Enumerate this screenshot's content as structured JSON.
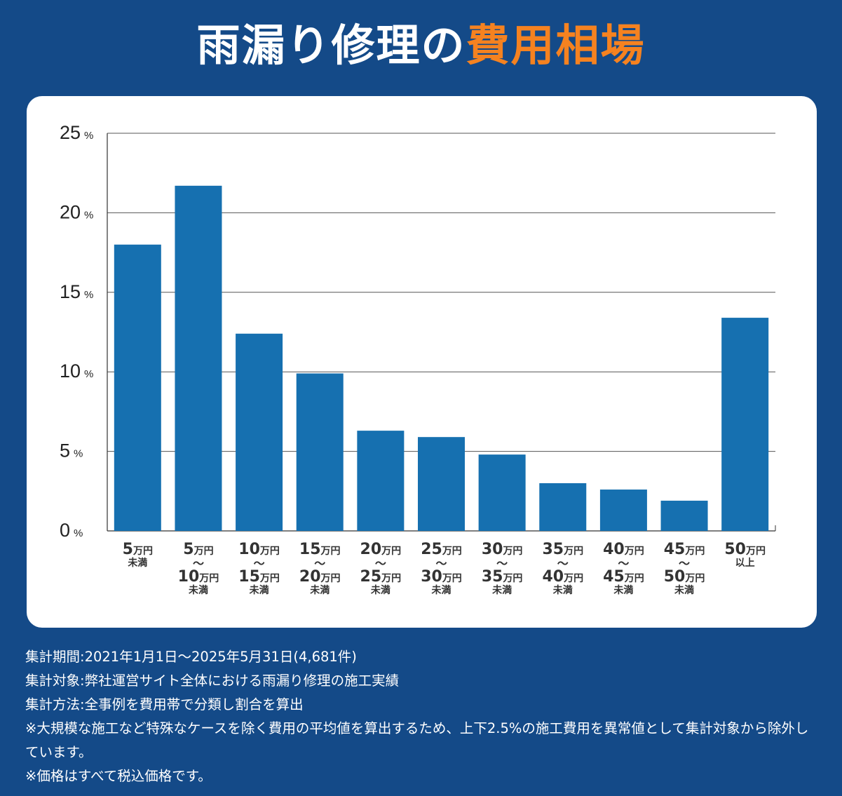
{
  "header": {
    "title_main": "雨漏り修理の",
    "title_accent": "費用相場"
  },
  "colors": {
    "background": "#144a88",
    "bar": "#1670b0",
    "accent": "#f58220",
    "text": "#333333"
  },
  "chart_data": {
    "type": "bar",
    "ylim": [
      0,
      25
    ],
    "yticks": [
      0,
      5,
      10,
      15,
      20,
      25
    ],
    "y_unit": "%",
    "grid": true,
    "categories": [
      {
        "lines": [
          {
            "n": "5",
            "u": "万円"
          },
          {
            "s": "未満"
          }
        ]
      },
      {
        "lines": [
          {
            "n": "5",
            "u": "万円"
          },
          {
            "t": "〜"
          },
          {
            "n": "10",
            "u": "万円"
          },
          {
            "s": "未満"
          }
        ]
      },
      {
        "lines": [
          {
            "n": "10",
            "u": "万円"
          },
          {
            "t": "〜"
          },
          {
            "n": "15",
            "u": "万円"
          },
          {
            "s": "未満"
          }
        ]
      },
      {
        "lines": [
          {
            "n": "15",
            "u": "万円"
          },
          {
            "t": "〜"
          },
          {
            "n": "20",
            "u": "万円"
          },
          {
            "s": "未満"
          }
        ]
      },
      {
        "lines": [
          {
            "n": "20",
            "u": "万円"
          },
          {
            "t": "〜"
          },
          {
            "n": "25",
            "u": "万円"
          },
          {
            "s": "未満"
          }
        ]
      },
      {
        "lines": [
          {
            "n": "25",
            "u": "万円"
          },
          {
            "t": "〜"
          },
          {
            "n": "30",
            "u": "万円"
          },
          {
            "s": "未満"
          }
        ]
      },
      {
        "lines": [
          {
            "n": "30",
            "u": "万円"
          },
          {
            "t": "〜"
          },
          {
            "n": "35",
            "u": "万円"
          },
          {
            "s": "未満"
          }
        ]
      },
      {
        "lines": [
          {
            "n": "35",
            "u": "万円"
          },
          {
            "t": "〜"
          },
          {
            "n": "40",
            "u": "万円"
          },
          {
            "s": "未満"
          }
        ]
      },
      {
        "lines": [
          {
            "n": "40",
            "u": "万円"
          },
          {
            "t": "〜"
          },
          {
            "n": "45",
            "u": "万円"
          },
          {
            "s": "未満"
          }
        ]
      },
      {
        "lines": [
          {
            "n": "45",
            "u": "万円"
          },
          {
            "t": "〜"
          },
          {
            "n": "50",
            "u": "万円"
          },
          {
            "s": "未満"
          }
        ]
      },
      {
        "lines": [
          {
            "n": "50",
            "u": "万円"
          },
          {
            "s": "以上"
          }
        ]
      }
    ],
    "values": [
      18.0,
      21.7,
      12.4,
      9.9,
      6.3,
      5.9,
      4.8,
      3.0,
      2.6,
      1.9,
      13.4
    ]
  },
  "notes": [
    "集計期間:2021年1月1日〜2025年5月31日(4,681件)",
    "集計対象:弊社運営サイト全体における雨漏り修理の施工実績",
    "集計方法:全事例を費用帯で分類し割合を算出",
    "※大規模な施工など特殊なケースを除く費用の平均値を算出するため、上下2.5%の施工費用を異常値として集計対象から除外しています。",
    "※価格はすべて税込価格です。"
  ]
}
